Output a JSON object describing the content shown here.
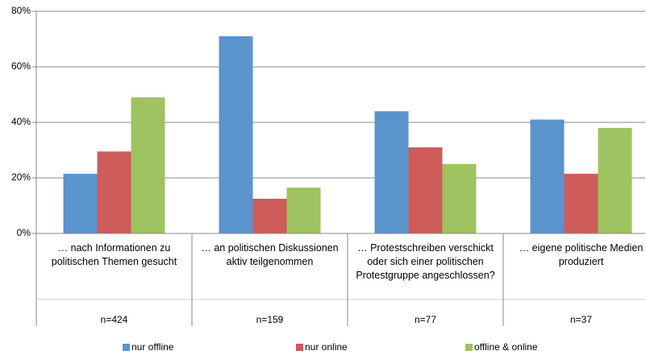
{
  "chart_data": {
    "type": "bar",
    "categories": [
      "… nach Informationen zu politischen Themen gesucht",
      "… an politischen Diskussionen aktiv teilgenommen",
      "… Protestschreiben verschickt oder sich einer politischen Protestgruppe angeschlossen?",
      "… eigene politische Medien produziert"
    ],
    "sample_sizes": [
      "n=424",
      "n=159",
      "n=77",
      "n=37"
    ],
    "series": [
      {
        "name": "nur offline",
        "color": "#5b93cd",
        "values": [
          21.5,
          71,
          44,
          41
        ]
      },
      {
        "name": "nur online",
        "color": "#cd5c5a",
        "values": [
          29.5,
          12.5,
          31,
          21.5
        ]
      },
      {
        "name": "offline & online",
        "color": "#9fc360",
        "values": [
          49,
          16.5,
          25,
          38
        ]
      }
    ],
    "ylim": [
      0,
      80
    ],
    "yticks": [
      {
        "value": 0,
        "label": "0%"
      },
      {
        "value": 20,
        "label": "20%"
      },
      {
        "value": 40,
        "label": "40%"
      },
      {
        "value": 60,
        "label": "60%"
      },
      {
        "value": 80,
        "label": "80%"
      }
    ],
    "grid": true
  }
}
